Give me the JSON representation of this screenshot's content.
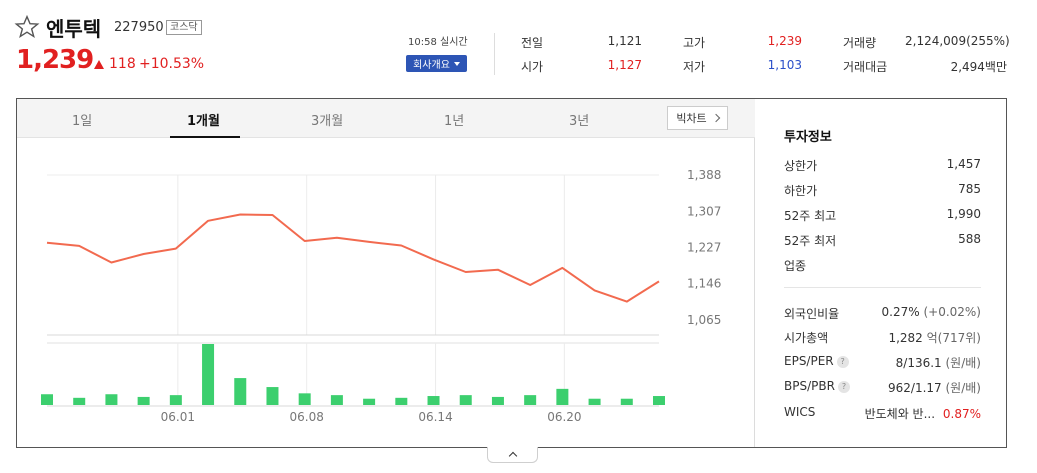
{
  "stock": {
    "name": "엔투텍",
    "code": "227950",
    "market": "코스닥",
    "price": "1,239",
    "change": "118",
    "change_pct": "+10.53%"
  },
  "realtime": {
    "time_label": "10:58 실시간",
    "company_button": "회사개요"
  },
  "quotes": {
    "prev_close_label": "전일",
    "prev_close": "1,121",
    "open_label": "시가",
    "open": "1,127",
    "high_label": "고가",
    "high": "1,239",
    "low_label": "저가",
    "low": "1,103",
    "volume_label": "거래량",
    "volume": "2,124,009(255%)",
    "value_label": "거래대금",
    "value": "2,494백만"
  },
  "tabs": [
    "1일",
    "1개월",
    "3개월",
    "1년",
    "3년"
  ],
  "active_tab": "1개월",
  "big_chart_label": "빅차트",
  "info": {
    "title": "투자정보",
    "upper_limit_label": "상한가",
    "upper_limit": "1,457",
    "lower_limit_label": "하한가",
    "lower_limit": "785",
    "high52_label": "52주 최고",
    "high52": "1,990",
    "low52_label": "52주 최저",
    "low52": "588",
    "sector_label": "업종",
    "foreign_label": "외국인비율",
    "foreign_value": "0.27%",
    "foreign_change": "(+0.02%)",
    "mcap_label": "시가총액",
    "mcap_value": "1,282",
    "mcap_unit": "억(717위)",
    "eps_label": "EPS/PER",
    "eps_value": "8/136.1",
    "eps_unit": "(원/배)",
    "bps_label": "BPS/PBR",
    "bps_value": "962/1.17",
    "bps_unit": "(원/배)",
    "wics_label": "WICS",
    "wics_value": "반도체와 반...",
    "wics_pct": "0.87%"
  },
  "colors": {
    "up": "#e12020",
    "down": "#2a4fc9",
    "line": "#f26a4f",
    "volume": "#3ccf6e"
  },
  "chart_data": {
    "type": "line",
    "y_ticks": [
      "1,388",
      "1,307",
      "1,227",
      "1,146",
      "1,065"
    ],
    "x_ticks": [
      "06.01",
      "06.08",
      "06.14",
      "06.20"
    ],
    "ylim": [
      1065,
      1388
    ],
    "series": [
      {
        "values": [
          1237,
          1230,
          1193,
          1212,
          1224,
          1286,
          1300,
          1299,
          1241,
          1248,
          1239,
          1231,
          1200,
          1172,
          1177,
          1143,
          1181,
          1131,
          1106,
          1151
        ]
      }
    ],
    "volume": [
      12,
      8,
      12,
      9,
      11,
      68,
      30,
      20,
      13,
      11,
      7,
      8,
      10,
      11,
      9,
      11,
      18,
      7,
      7,
      10
    ]
  }
}
